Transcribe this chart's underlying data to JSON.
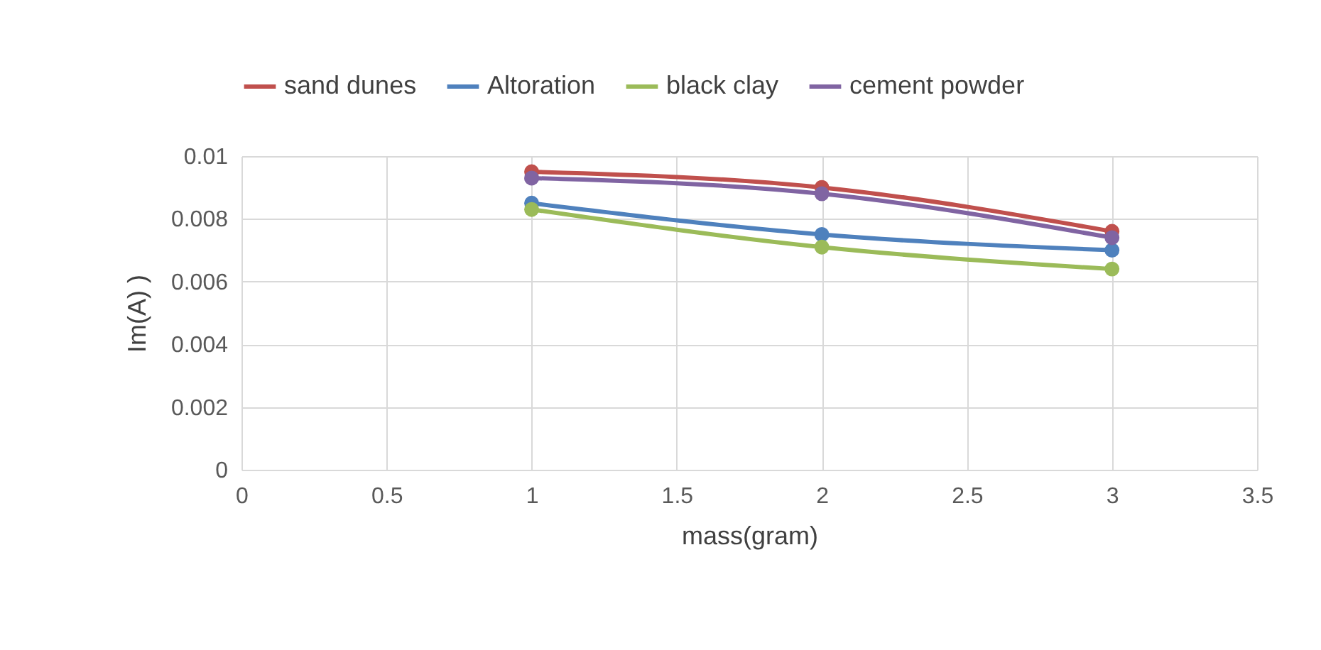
{
  "chart_data": {
    "type": "line",
    "xlabel": "mass(gram)",
    "ylabel": "Im(A) )",
    "x": [
      1,
      2,
      3
    ],
    "series": [
      {
        "name": "sand dunes",
        "color": "#c0504d",
        "values": [
          0.0095,
          0.009,
          0.0076
        ]
      },
      {
        "name": "Altoration",
        "color": "#4f81bd",
        "values": [
          0.0085,
          0.0075,
          0.007
        ]
      },
      {
        "name": "black clay",
        "color": "#9bbb59",
        "values": [
          0.0083,
          0.0071,
          0.0064
        ]
      },
      {
        "name": "cement powder",
        "color": "#8064a2",
        "values": [
          0.0093,
          0.0088,
          0.0074
        ]
      }
    ],
    "xlim": [
      0,
      3.5
    ],
    "xticks": [
      0,
      0.5,
      1,
      1.5,
      2,
      2.5,
      3,
      3.5
    ],
    "ylim": [
      0,
      0.01
    ],
    "yticks": [
      0,
      0.002,
      0.004,
      0.006,
      0.008,
      0.01
    ],
    "grid": true,
    "legend": "top",
    "marker": "circle",
    "line_style": "solid"
  }
}
